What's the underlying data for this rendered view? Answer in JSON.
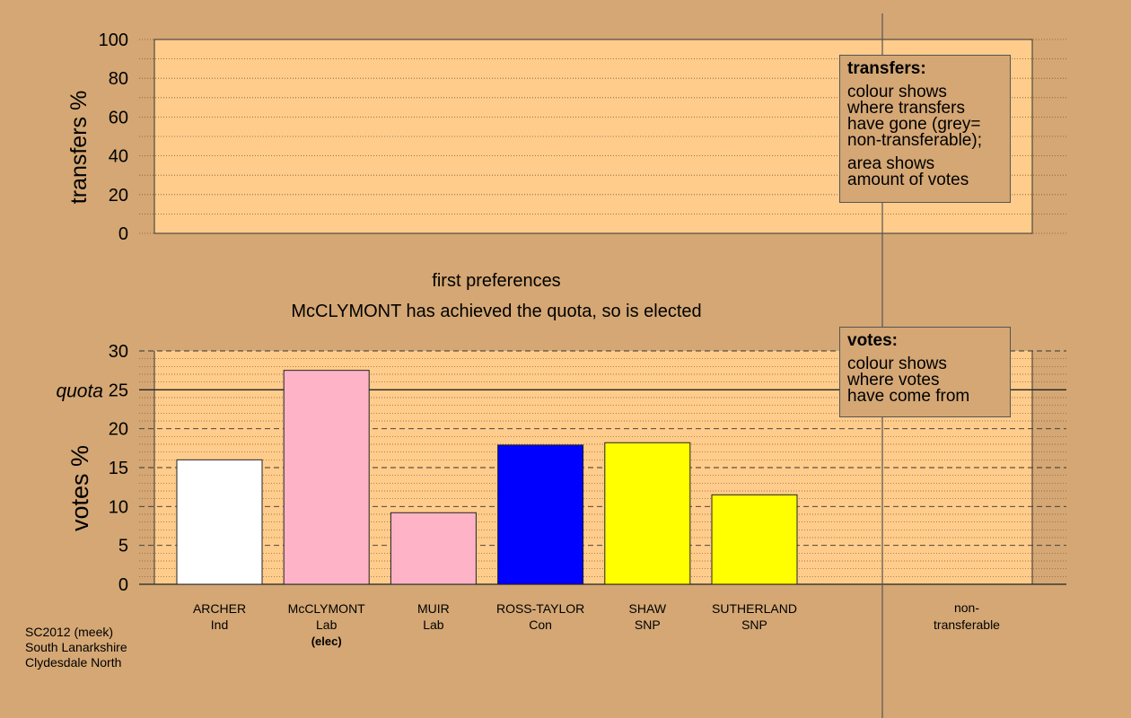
{
  "chart_data": [
    {
      "type": "bar",
      "title": "",
      "ylabel": "transfers %",
      "ylim": [
        0,
        100
      ],
      "yticks": [
        0,
        20,
        40,
        60,
        80,
        100
      ],
      "grid": "dotted",
      "legend": {
        "title": "transfers:",
        "lines_a": [
          "colour shows",
          "where transfers",
          "have gone (grey=",
          "non-transferable);"
        ],
        "lines_b": [
          "area shows",
          "amount of votes"
        ],
        "placement": "top-right"
      }
    },
    {
      "type": "bar",
      "title": "first preferences",
      "subtitle": "McCLYMONT has achieved the quota, so is elected",
      "ylabel": "votes %",
      "ylim": [
        0,
        30
      ],
      "yticks": [
        0,
        5,
        10,
        15,
        20,
        25,
        30
      ],
      "quota": {
        "value": 25,
        "label": "quota"
      },
      "categories": [
        {
          "name": "ARCHER",
          "party": "Ind",
          "note": ""
        },
        {
          "name": "McCLYMONT",
          "party": "Lab",
          "note": "(elec)"
        },
        {
          "name": "MUIR",
          "party": "Lab",
          "note": ""
        },
        {
          "name": "ROSS-TAYLOR",
          "party": "Con",
          "note": ""
        },
        {
          "name": "SHAW",
          "party": "SNP",
          "note": ""
        },
        {
          "name": "SUTHERLAND",
          "party": "SNP",
          "note": ""
        }
      ],
      "values": [
        16.0,
        27.5,
        9.2,
        17.9,
        18.2,
        11.5
      ],
      "colors": [
        "#ffffff",
        "#ffb3c6",
        "#ffb3c6",
        "#0000ff",
        "#ffff00",
        "#ffff00"
      ],
      "nontransferable_label": [
        "non-",
        "transferable"
      ],
      "legend": {
        "title": "votes:",
        "lines_a": [
          "colour shows",
          "where votes",
          "have come from"
        ],
        "placement": "top-right"
      }
    }
  ],
  "footer": {
    "line1": "SC2012 (meek)",
    "line2": "South Lanarkshire",
    "line3": "Clydesdale North"
  }
}
